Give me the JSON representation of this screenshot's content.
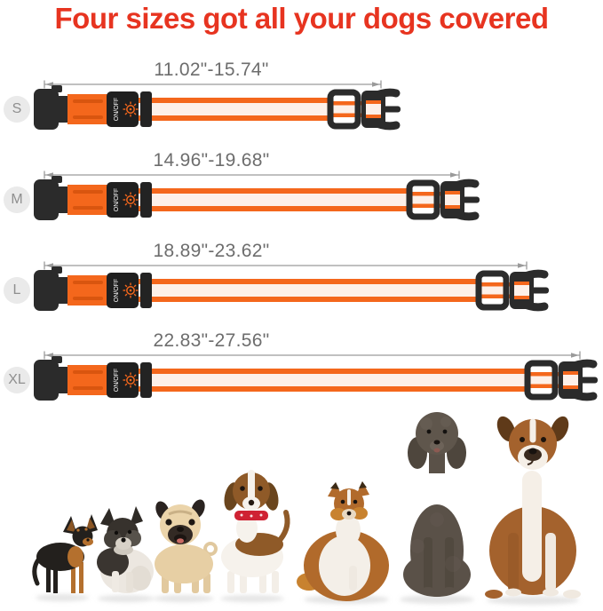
{
  "title": "Four sizes got all your dogs covered",
  "theme": {
    "title_red": "#e73420",
    "strap_orange": "#f4671c",
    "stitch_orange_dark": "#d9550f",
    "led_strip_white": "#fdf0e9",
    "hardware_black": "#2b2b2b",
    "d_ring_silver": "#dedede",
    "dimension_line_gray": "#9a9a9a",
    "measure_text_gray": "#6d6d6d",
    "badge_bg": "#eaeaea",
    "badge_text": "#8f8f8f",
    "beagle_collar_red": "#cf2233"
  },
  "sizes": [
    {
      "label": "S",
      "range": "11.02\"-15.74\""
    },
    {
      "label": "M",
      "range": "14.96\"-19.68\""
    },
    {
      "label": "L",
      "range": "18.89\"-23.62\""
    },
    {
      "label": "XL",
      "range": "22.83\"-27.56\""
    }
  ],
  "collar": {
    "switch_label": "ON/OFF",
    "switch_icon": "led-sun-icon"
  },
  "dogs": [
    {
      "name": "chihuahua"
    },
    {
      "name": "yorkshire-terrier"
    },
    {
      "name": "pug"
    },
    {
      "name": "beagle"
    },
    {
      "name": "sheltie"
    },
    {
      "name": "poodle"
    },
    {
      "name": "boxer"
    }
  ]
}
